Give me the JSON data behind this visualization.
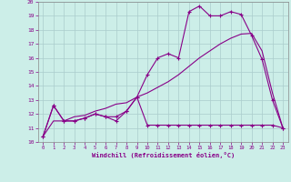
{
  "bg_color": "#cceee8",
  "grid_color": "#aacccc",
  "line_color": "#880088",
  "xlim": [
    -0.5,
    23.5
  ],
  "ylim": [
    10,
    20
  ],
  "xticks": [
    0,
    1,
    2,
    3,
    4,
    5,
    6,
    7,
    8,
    9,
    10,
    11,
    12,
    13,
    14,
    15,
    16,
    17,
    18,
    19,
    20,
    21,
    22,
    23
  ],
  "yticks": [
    10,
    11,
    12,
    13,
    14,
    15,
    16,
    17,
    18,
    19,
    20
  ],
  "xlabel": "Windchill (Refroidissement éolien,°C)",
  "line1_x": [
    0,
    1,
    2,
    3,
    4,
    5,
    6,
    7,
    8,
    9,
    10,
    11,
    12,
    13,
    14,
    15,
    16,
    17,
    18,
    19,
    20,
    21,
    22,
    23
  ],
  "line1_y": [
    10.4,
    12.6,
    11.5,
    11.5,
    11.7,
    12.0,
    11.8,
    11.5,
    12.2,
    13.2,
    11.2,
    11.2,
    11.2,
    11.2,
    11.2,
    11.2,
    11.2,
    11.2,
    11.2,
    11.2,
    11.2,
    11.2,
    11.2,
    11.0
  ],
  "line2_x": [
    0,
    1,
    2,
    3,
    4,
    5,
    6,
    7,
    8,
    9,
    10,
    11,
    12,
    13,
    14,
    15,
    16,
    17,
    18,
    19,
    20,
    21,
    22,
    23
  ],
  "line2_y": [
    10.4,
    12.6,
    11.5,
    11.5,
    11.7,
    12.0,
    11.8,
    11.8,
    12.2,
    13.2,
    14.8,
    16.0,
    16.3,
    16.0,
    19.3,
    19.7,
    19.0,
    19.0,
    19.3,
    19.1,
    17.6,
    15.9,
    13.0,
    11.0
  ],
  "line3_x": [
    0,
    1,
    2,
    3,
    4,
    5,
    6,
    7,
    8,
    9,
    10,
    11,
    12,
    13,
    14,
    15,
    16,
    17,
    18,
    19,
    20,
    21,
    22,
    23
  ],
  "line3_y": [
    10.4,
    11.5,
    11.5,
    11.8,
    11.9,
    12.2,
    12.4,
    12.7,
    12.8,
    13.2,
    13.5,
    13.9,
    14.3,
    14.8,
    15.4,
    16.0,
    16.5,
    17.0,
    17.4,
    17.7,
    17.75,
    16.5,
    13.5,
    11.0
  ]
}
